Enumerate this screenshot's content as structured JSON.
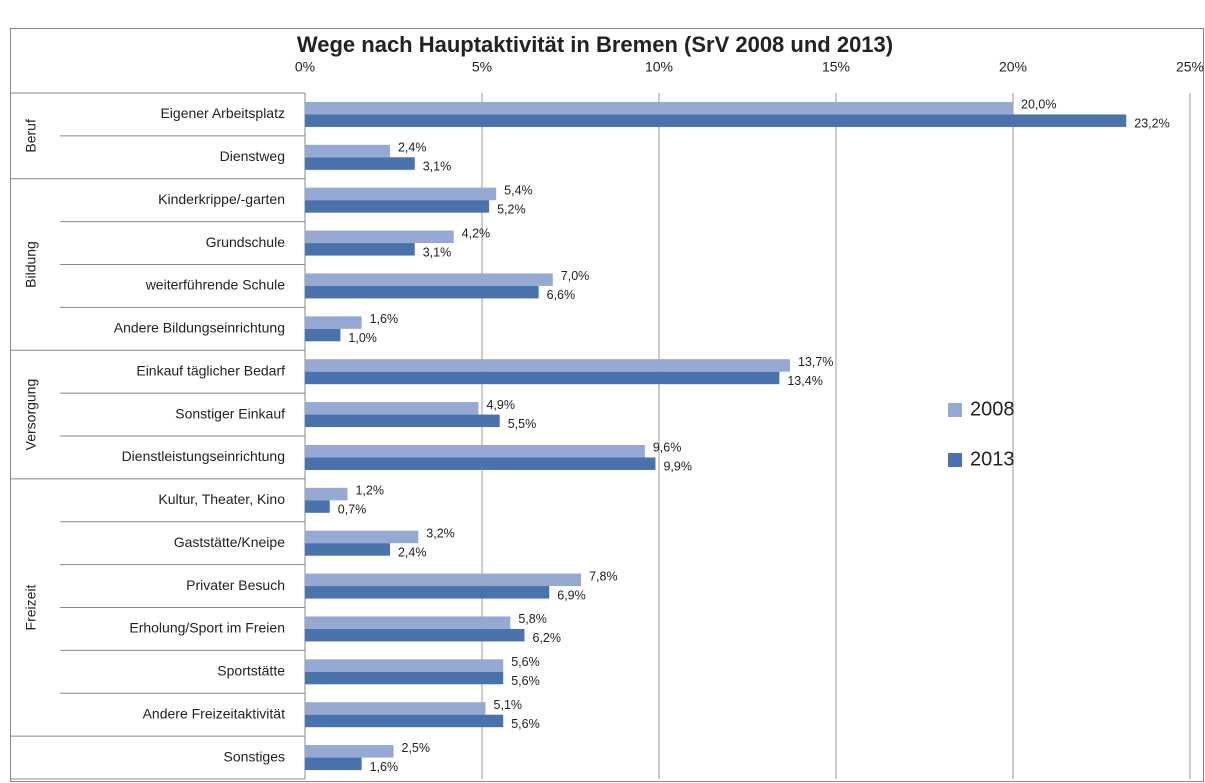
{
  "chart_data": {
    "type": "bar",
    "orientation": "horizontal",
    "title": "Wege nach Hauptaktivität in Bremen (SrV 2008 und 2013)",
    "categories": [
      "Eigener Arbeitsplatz",
      "Dienstweg",
      "Kinderkrippe/-garten",
      "Grundschule",
      "weiterführende Schule",
      "Andere Bildungseinrichtung",
      "Einkauf täglicher Bedarf",
      "Sonstiger Einkauf",
      "Dienstleistungseinrichtung",
      "Kultur, Theater, Kino",
      "Gaststätte/Kneipe",
      "Privater Besuch",
      "Erholung/Sport im Freien",
      "Sportstätte",
      "Andere Freizeitaktivität",
      "Sonstiges"
    ],
    "category_groups": [
      "Beruf",
      "Beruf",
      "Bildung",
      "Bildung",
      "Bildung",
      "Bildung",
      "Versorgung",
      "Versorgung",
      "Versorgung",
      "Freizeit",
      "Freizeit",
      "Freizeit",
      "Freizeit",
      "Freizeit",
      "Freizeit",
      null
    ],
    "series": [
      {
        "name": "2008",
        "color": "#95a9d3",
        "values": [
          20.0,
          2.4,
          5.4,
          4.2,
          7.0,
          1.6,
          13.7,
          4.9,
          9.6,
          1.2,
          3.2,
          7.8,
          5.8,
          5.6,
          5.1,
          2.5
        ],
        "value_labels": [
          "20,0%",
          "2,4%",
          "5,4%",
          "4,2%",
          "7,0%",
          "1,6%",
          "13,7%",
          "4,9%",
          "9,6%",
          "1,2%",
          "3,2%",
          "7,8%",
          "5,8%",
          "5,6%",
          "5,1%",
          "2,5%"
        ]
      },
      {
        "name": "2013",
        "color": "#4a73ad",
        "values": [
          23.2,
          3.1,
          5.2,
          3.1,
          6.6,
          1.0,
          13.4,
          5.5,
          9.9,
          0.7,
          2.4,
          6.9,
          6.2,
          5.6,
          5.6,
          1.6
        ],
        "value_labels": [
          "23,2%",
          "3,1%",
          "5,2%",
          "3,1%",
          "6,6%",
          "1,0%",
          "13,4%",
          "5,5%",
          "9,9%",
          "0,7%",
          "2,4%",
          "6,9%",
          "6,2%",
          "5,6%",
          "5,6%",
          "1,6%"
        ]
      }
    ],
    "xlim": [
      0,
      25
    ],
    "xticks": [
      {
        "value": 0,
        "label": "0%"
      },
      {
        "value": 5,
        "label": "5%"
      },
      {
        "value": 10,
        "label": "10%"
      },
      {
        "value": 15,
        "label": "15%"
      },
      {
        "value": 20,
        "label": "20%"
      },
      {
        "value": 25,
        "label": "25%"
      }
    ],
    "grid": true,
    "legend": "right"
  }
}
